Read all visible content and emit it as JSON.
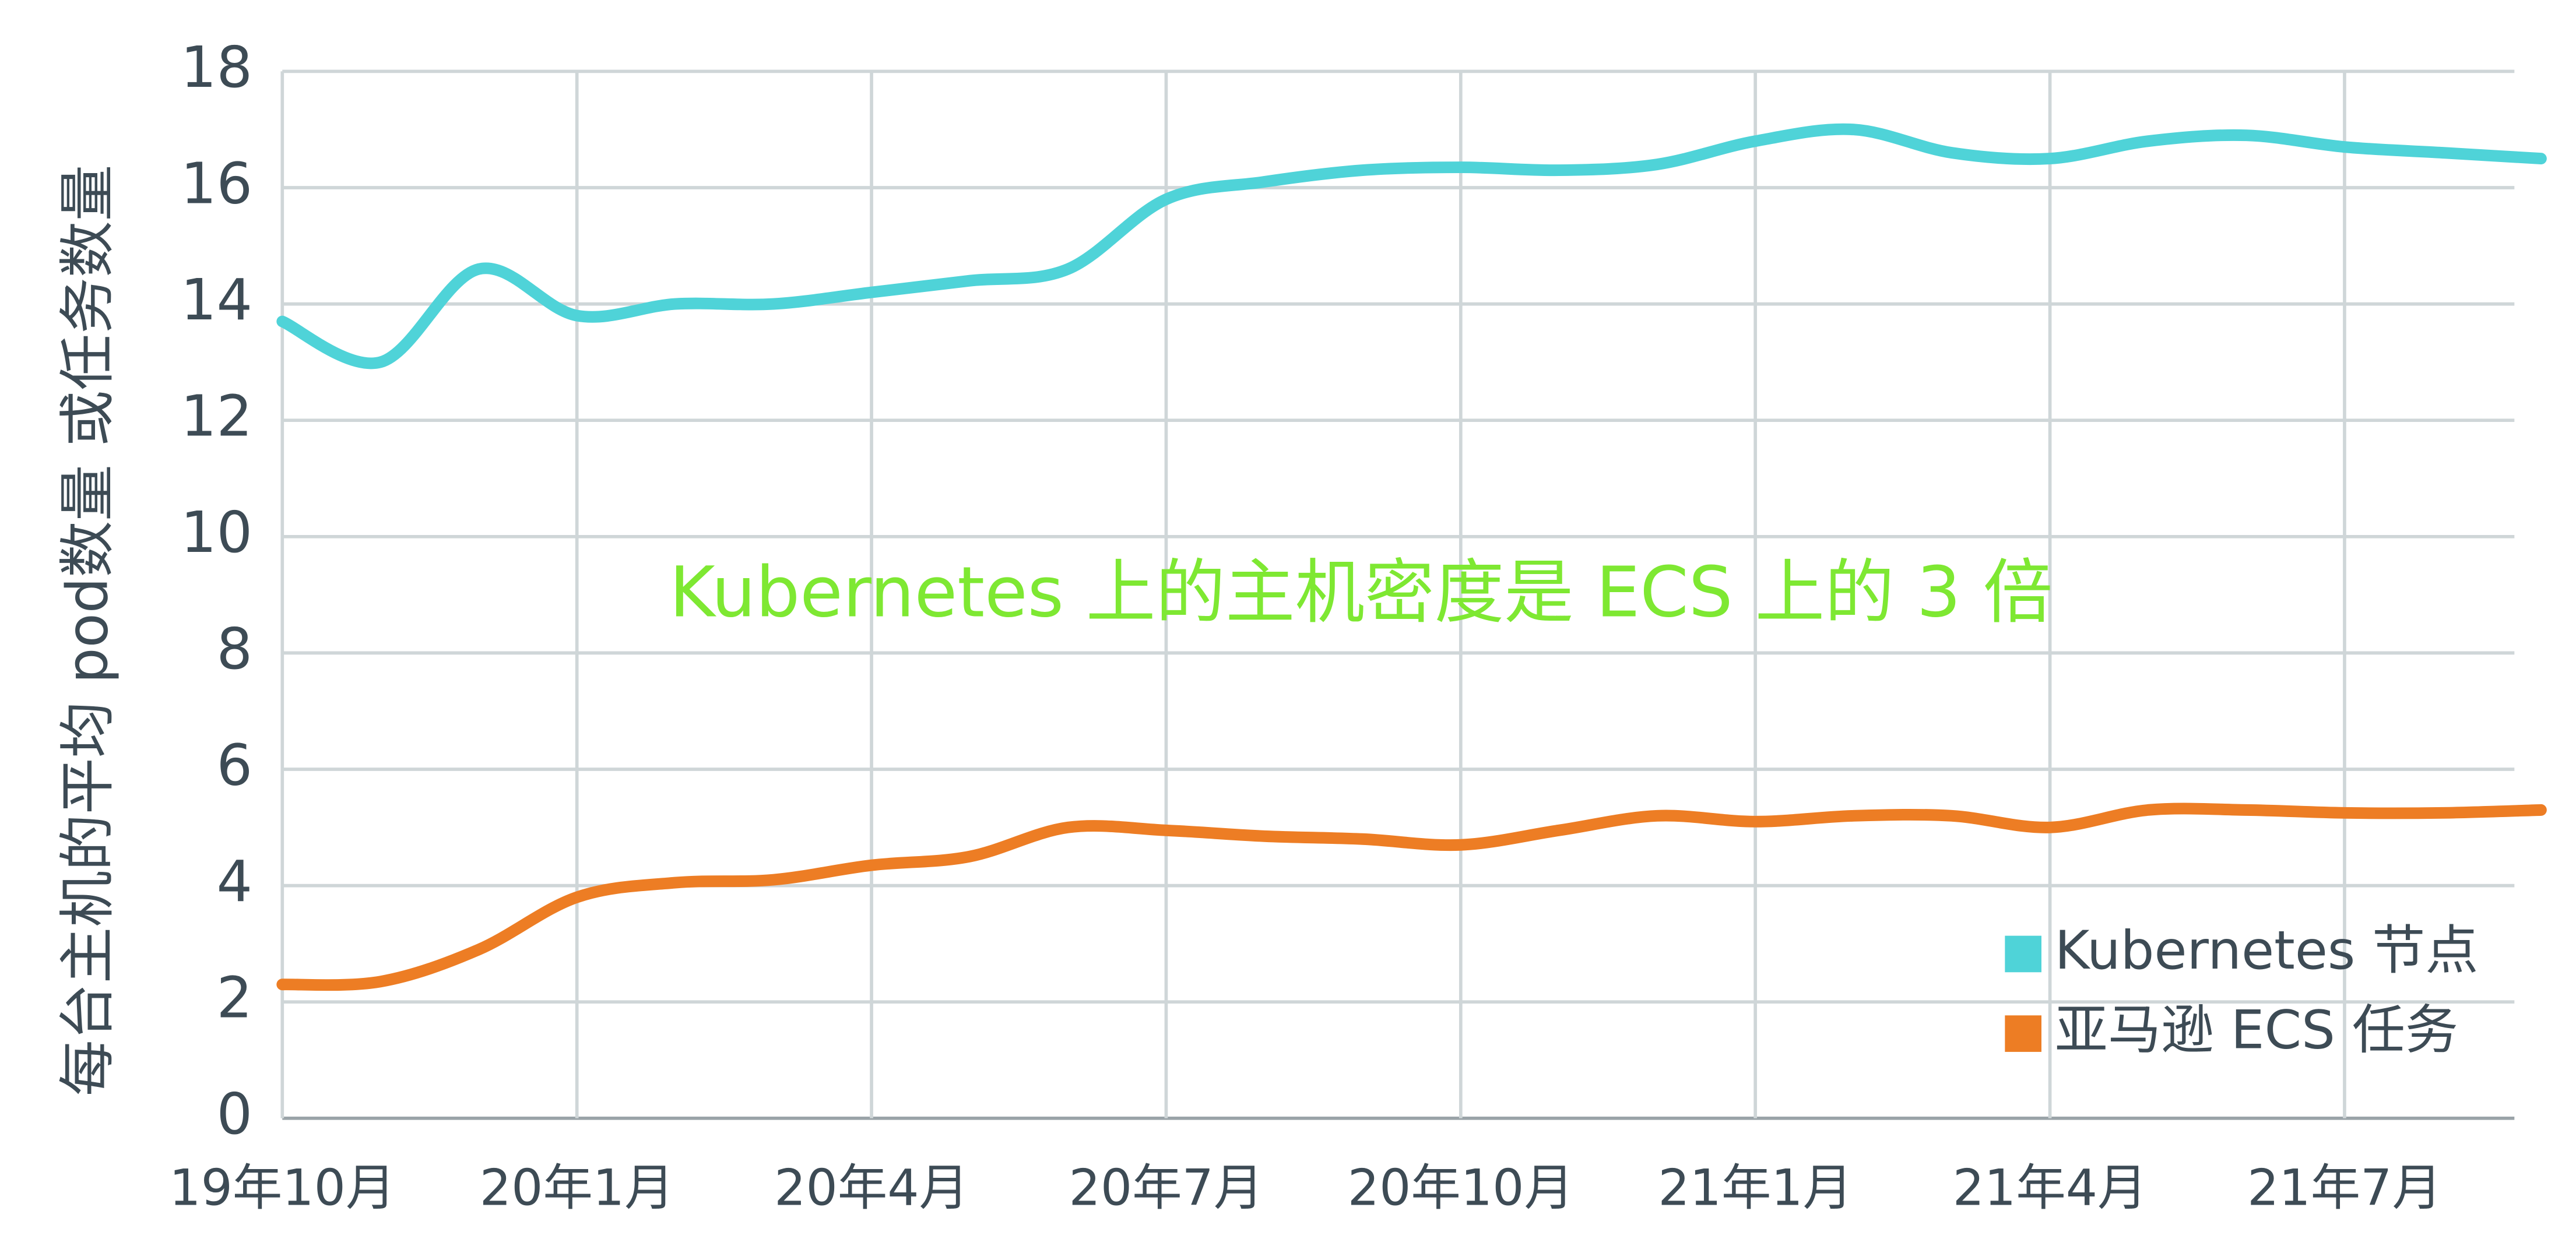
{
  "chart_data": {
    "type": "line",
    "annotation": "Kubernetes 上的主机密度是 ECS 上的 3 倍",
    "y_label": "每台主机的平均 pod数量 或任务数量",
    "x": [
      "2019-10",
      "2019-11",
      "2019-12",
      "2020-01",
      "2020-02",
      "2020-03",
      "2020-04",
      "2020-05",
      "2020-06",
      "2020-07",
      "2020-08",
      "2020-09",
      "2020-10",
      "2020-11",
      "2020-12",
      "2021-01",
      "2021-02",
      "2021-03",
      "2021-04",
      "2021-05",
      "2021-06",
      "2021-07",
      "2021-08",
      "2021-09"
    ],
    "series": [
      {
        "name": "Kubernetes 节点",
        "color": "#4fd3d8",
        "values": [
          13.7,
          13.0,
          14.6,
          13.8,
          14.0,
          14.0,
          14.2,
          14.4,
          14.6,
          15.8,
          16.1,
          16.3,
          16.35,
          16.3,
          16.4,
          16.8,
          17.0,
          16.6,
          16.5,
          16.8,
          16.9,
          16.7,
          16.6,
          16.5
        ]
      },
      {
        "name": "亚马逊 ECS 任务",
        "color": "#ed7d24",
        "values": [
          2.3,
          2.35,
          2.9,
          3.8,
          4.05,
          4.1,
          4.35,
          4.5,
          5.0,
          4.95,
          4.85,
          4.8,
          4.7,
          4.95,
          5.2,
          5.1,
          5.2,
          5.2,
          5.0,
          5.3,
          5.3,
          5.25,
          5.25,
          5.3
        ]
      }
    ],
    "xlim": [
      "2019-10",
      "2021-09"
    ],
    "xticks": [
      {
        "value": "2019-10",
        "label": "19年10月"
      },
      {
        "value": "2020-01",
        "label": "20年1月"
      },
      {
        "value": "2020-04",
        "label": "20年4月"
      },
      {
        "value": "2020-07",
        "label": "20年7月"
      },
      {
        "value": "2020-10",
        "label": "20年10月"
      },
      {
        "value": "2021-01",
        "label": "21年1月"
      },
      {
        "value": "2021-04",
        "label": "21年4月"
      },
      {
        "value": "2021-07",
        "label": "21年7月"
      }
    ],
    "ylim": [
      0,
      18
    ],
    "yticks": [
      0,
      2,
      4,
      6,
      8,
      10,
      12,
      14,
      16,
      18
    ],
    "grid": true,
    "legend": "bottom-right",
    "annotation_color": "#7ee832"
  }
}
